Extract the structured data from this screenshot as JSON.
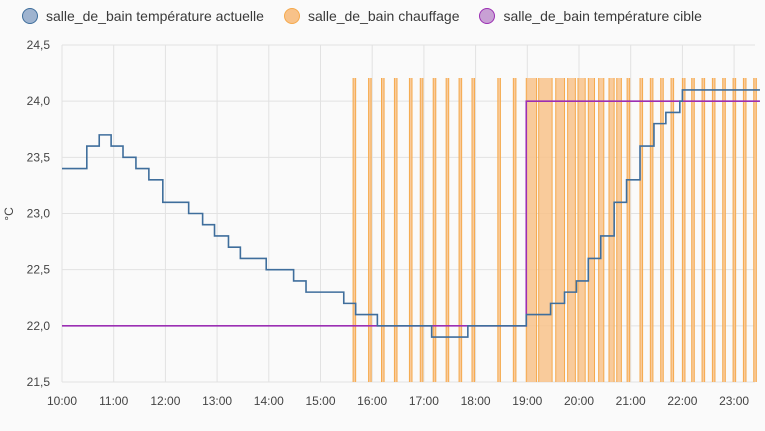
{
  "chart_data": {
    "type": "line",
    "y_unit": "°C",
    "ylim": [
      21.5,
      24.5
    ],
    "y_ticks": [
      "21,5",
      "22,0",
      "22,5",
      "23,0",
      "23,5",
      "24,0",
      "24,5"
    ],
    "y_tick_values": [
      21.5,
      22.0,
      22.5,
      23.0,
      23.5,
      24.0,
      24.5
    ],
    "x_ticks": [
      "10:00",
      "11:00",
      "12:00",
      "13:00",
      "14:00",
      "15:00",
      "16:00",
      "17:00",
      "18:00",
      "19:00",
      "20:00",
      "21:00",
      "22:00",
      "23:00"
    ],
    "x_range_hours": [
      10.0,
      23.5
    ],
    "grid": true,
    "legend_position": "top-left",
    "series": [
      {
        "name": "salle_de_bain température actuelle",
        "color": "#3f6e9c",
        "fill": "#9eb3cf",
        "step": true,
        "points": [
          [
            10.0,
            23.4
          ],
          [
            10.48,
            23.6
          ],
          [
            10.72,
            23.7
          ],
          [
            10.95,
            23.6
          ],
          [
            11.18,
            23.5
          ],
          [
            11.43,
            23.4
          ],
          [
            11.68,
            23.3
          ],
          [
            11.95,
            23.1
          ],
          [
            12.45,
            23.0
          ],
          [
            12.72,
            22.9
          ],
          [
            12.95,
            22.8
          ],
          [
            13.22,
            22.7
          ],
          [
            13.45,
            22.6
          ],
          [
            13.95,
            22.5
          ],
          [
            14.48,
            22.4
          ],
          [
            14.72,
            22.3
          ],
          [
            15.45,
            22.2
          ],
          [
            15.68,
            22.1
          ],
          [
            16.1,
            22.0
          ],
          [
            17.15,
            21.9
          ],
          [
            17.85,
            22.0
          ],
          [
            18.98,
            22.1
          ],
          [
            19.45,
            22.2
          ],
          [
            19.72,
            22.3
          ],
          [
            19.95,
            22.4
          ],
          [
            20.18,
            22.6
          ],
          [
            20.42,
            22.8
          ],
          [
            20.68,
            23.1
          ],
          [
            20.92,
            23.3
          ],
          [
            21.18,
            23.6
          ],
          [
            21.45,
            23.8
          ],
          [
            21.68,
            23.9
          ],
          [
            21.95,
            24.0
          ],
          [
            22.0,
            24.1
          ],
          [
            23.5,
            24.1
          ]
        ]
      },
      {
        "name": "salle_de_bain chauffage",
        "color": "#f5a94c",
        "fill": "#f8c289",
        "on_intervals": [
          [
            15.63,
            15.68
          ],
          [
            15.93,
            15.98
          ],
          [
            16.18,
            16.23
          ],
          [
            16.43,
            16.48
          ],
          [
            16.72,
            16.77
          ],
          [
            16.93,
            16.98
          ],
          [
            17.18,
            17.23
          ],
          [
            17.43,
            17.48
          ],
          [
            17.68,
            17.73
          ],
          [
            17.93,
            17.98
          ],
          [
            18.43,
            18.48
          ],
          [
            18.73,
            18.78
          ],
          [
            18.98,
            19.18
          ],
          [
            19.22,
            19.48
          ],
          [
            19.55,
            19.72
          ],
          [
            19.78,
            19.93
          ],
          [
            19.98,
            20.12
          ],
          [
            20.18,
            20.3
          ],
          [
            20.38,
            20.48
          ],
          [
            20.58,
            20.68
          ],
          [
            20.73,
            20.82
          ],
          [
            20.93,
            20.98
          ],
          [
            21.18,
            21.23
          ],
          [
            21.38,
            21.43
          ],
          [
            21.58,
            21.63
          ],
          [
            21.78,
            21.83
          ],
          [
            22.0,
            22.05
          ],
          [
            22.18,
            22.23
          ],
          [
            22.38,
            22.43
          ],
          [
            22.58,
            22.63
          ],
          [
            22.78,
            22.83
          ],
          [
            22.98,
            23.03
          ],
          [
            23.18,
            23.23
          ],
          [
            23.38,
            23.43
          ]
        ]
      },
      {
        "name": "salle_de_bain température cible",
        "color": "#9b2fb3",
        "fill": "#c8a0d4",
        "step": true,
        "points": [
          [
            10.0,
            22.0
          ],
          [
            18.98,
            24.0
          ],
          [
            23.5,
            24.0
          ]
        ]
      }
    ]
  }
}
